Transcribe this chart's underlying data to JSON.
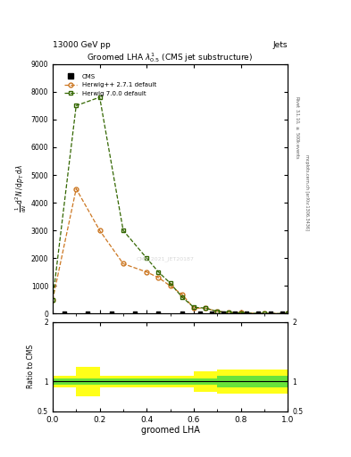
{
  "title": "Groomed LHA $\\lambda^{1}_{0.5}$ (CMS jet substructure)",
  "top_left_label": "13000 GeV pp",
  "top_right_label": "Jets",
  "right_label_top": "Rivet 3.1.10, $\\geq$ 500k events",
  "right_label_bottom": "mcplots.cern.ch [arXiv:1306.3436]",
  "xlabel": "groomed LHA",
  "ylabel_main": "$\\frac{1}{\\mathrm{d}N}\\,\\mathrm{d}^{2}N\\,/\\,\\mathrm{d}p_{T}\\,\\mathrm{d}\\lambda$",
  "ylabel_ratio": "Ratio to CMS",
  "cms_watermark": "CMS_2021_JET20187",
  "herwig_pp_x": [
    0.0,
    0.1,
    0.2,
    0.3,
    0.4,
    0.45,
    0.5,
    0.55,
    0.6,
    0.65,
    0.7,
    0.75,
    0.8,
    0.9,
    1.0
  ],
  "herwig_pp_y": [
    500,
    4500,
    3000,
    1800,
    1500,
    1300,
    1000,
    700,
    200,
    200,
    80,
    50,
    30,
    5,
    2
  ],
  "herwig_700_x": [
    0.0,
    0.1,
    0.2,
    0.3,
    0.4,
    0.45,
    0.5,
    0.55,
    0.6,
    0.65,
    0.7,
    0.75,
    0.8,
    0.9,
    1.0
  ],
  "herwig_700_y": [
    500,
    7500,
    7800,
    3000,
    2000,
    1500,
    1100,
    600,
    230,
    200,
    80,
    50,
    25,
    5,
    2
  ],
  "cms_x": [
    0.05,
    0.15,
    0.25,
    0.35,
    0.45,
    0.55,
    0.625,
    0.675,
    0.725,
    0.775,
    0.825,
    0.875,
    0.925,
    0.975
  ],
  "cms_y": [
    0,
    0,
    0,
    0,
    0,
    0,
    0,
    0,
    0,
    0,
    0,
    0,
    0,
    0
  ],
  "ylim_main": [
    0,
    9000
  ],
  "ylim_ratio": [
    0.5,
    2.0
  ],
  "color_herwig_pp": "#cc7722",
  "color_herwig_700": "#336600",
  "color_cms": "#000000",
  "band_x": [
    0.0,
    0.1,
    0.2,
    0.6,
    0.7,
    1.0
  ],
  "green_top": [
    1.05,
    1.05,
    1.05,
    1.05,
    1.1,
    1.1
  ],
  "green_bot": [
    0.95,
    0.95,
    0.95,
    0.95,
    0.9,
    0.9
  ],
  "yellow_top": [
    1.1,
    1.25,
    1.1,
    1.18,
    1.2,
    1.2
  ],
  "yellow_bot": [
    0.9,
    0.75,
    0.9,
    0.82,
    0.8,
    0.8
  ]
}
